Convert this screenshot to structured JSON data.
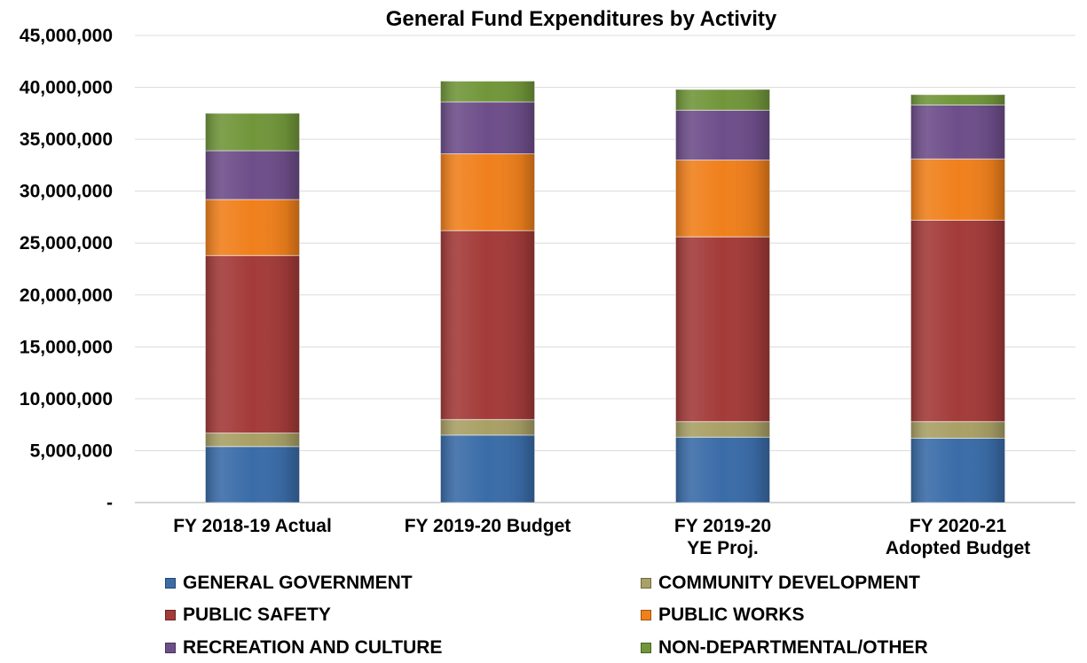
{
  "chart_data": {
    "type": "bar",
    "stacked": true,
    "title": "General Fund Expenditures by Activity",
    "xlabel": "",
    "ylabel": "",
    "ylim": [
      0,
      45000000
    ],
    "ytick_values": [
      0,
      5000000,
      10000000,
      15000000,
      20000000,
      25000000,
      30000000,
      35000000,
      40000000,
      45000000
    ],
    "ytick_labels": [
      "-",
      "5,000,000",
      "10,000,000",
      "15,000,000",
      "20,000,000",
      "25,000,000",
      "30,000,000",
      "35,000,000",
      "40,000,000",
      "45,000,000"
    ],
    "grid": true,
    "legend_position": "bottom",
    "categories": [
      [
        "FY 2018-19 Actual"
      ],
      [
        "FY 2019-20 Budget"
      ],
      [
        "FY 2019-20",
        "YE Proj."
      ],
      [
        "FY 2020-21",
        "Adopted Budget"
      ]
    ],
    "series": [
      {
        "name": "GENERAL GOVERNMENT",
        "color": "#3A6CA8",
        "values": [
          5400000,
          6500000,
          6300000,
          6200000
        ]
      },
      {
        "name": "COMMUNITY DEVELOPMENT",
        "color": "#A9A066",
        "values": [
          1300000,
          1500000,
          1500000,
          1600000
        ]
      },
      {
        "name": "PUBLIC SAFETY",
        "color": "#A33B39",
        "values": [
          17100000,
          18200000,
          17800000,
          19400000
        ]
      },
      {
        "name": "PUBLIC WORKS",
        "color": "#F0801C",
        "values": [
          5400000,
          7400000,
          7400000,
          5900000
        ]
      },
      {
        "name": "RECREATION AND CULTURE",
        "color": "#6E4E8A",
        "values": [
          4700000,
          5000000,
          4800000,
          5200000
        ]
      },
      {
        "name": "NON-DEPARTMENTAL/OTHER",
        "color": "#71963A",
        "values": [
          3600000,
          2000000,
          2000000,
          1000000
        ]
      }
    ]
  }
}
